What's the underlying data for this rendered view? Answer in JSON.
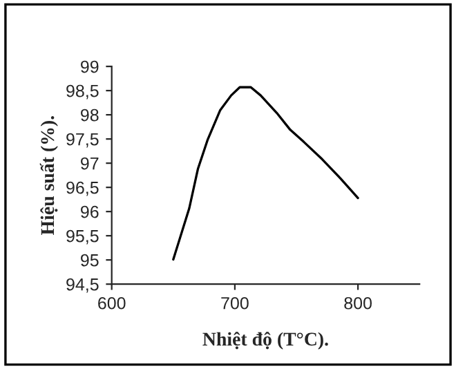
{
  "chart_data": {
    "type": "line",
    "xlabel": "Nhiệt độ (T°C).",
    "ylabel": "Hiệu suất (%).",
    "x": [
      650,
      663,
      670,
      678,
      688,
      697,
      704,
      713,
      721,
      734,
      745,
      756,
      771,
      786,
      800
    ],
    "series": [
      {
        "color": "#000000",
        "values": [
          95.01,
          96.07,
          96.88,
          97.49,
          98.09,
          98.4,
          98.57,
          98.57,
          98.4,
          98.04,
          97.69,
          97.44,
          97.08,
          96.68,
          96.28
        ]
      }
    ],
    "xlim": [
      600,
      850
    ],
    "xticks": [
      600,
      700,
      800
    ],
    "ylim": [
      94.5,
      99
    ],
    "yticks": [
      {
        "value": 94.5,
        "label": "94,5"
      },
      95,
      {
        "value": 95.5,
        "label": "95,5"
      },
      96,
      {
        "value": 96.5,
        "label": "96,5"
      },
      97,
      {
        "value": 97.5,
        "label": "97,5"
      },
      98,
      {
        "value": 98.5,
        "label": "98,5"
      },
      99
    ],
    "grid": false,
    "marker": "none",
    "line_style": "solid"
  }
}
